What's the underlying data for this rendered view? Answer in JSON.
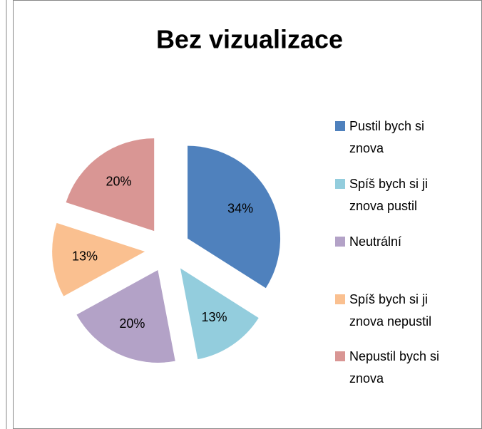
{
  "chart_data": {
    "type": "pie",
    "title": "Bez vizualizace",
    "categories": [
      "Pustil bych si znova",
      "Spíš bych si ji znova pustil",
      "Neutrální",
      "Spíš bych si ji znova nepustil",
      "Nepustil bych si znova"
    ],
    "values": [
      34,
      13,
      20,
      13,
      20
    ],
    "value_labels": [
      "34%",
      "13%",
      "20%",
      "13%",
      "20%"
    ],
    "colors": [
      "#4f81bd",
      "#93cddd",
      "#b3a2c7",
      "#fac090",
      "#d99694"
    ],
    "exploded": true
  }
}
